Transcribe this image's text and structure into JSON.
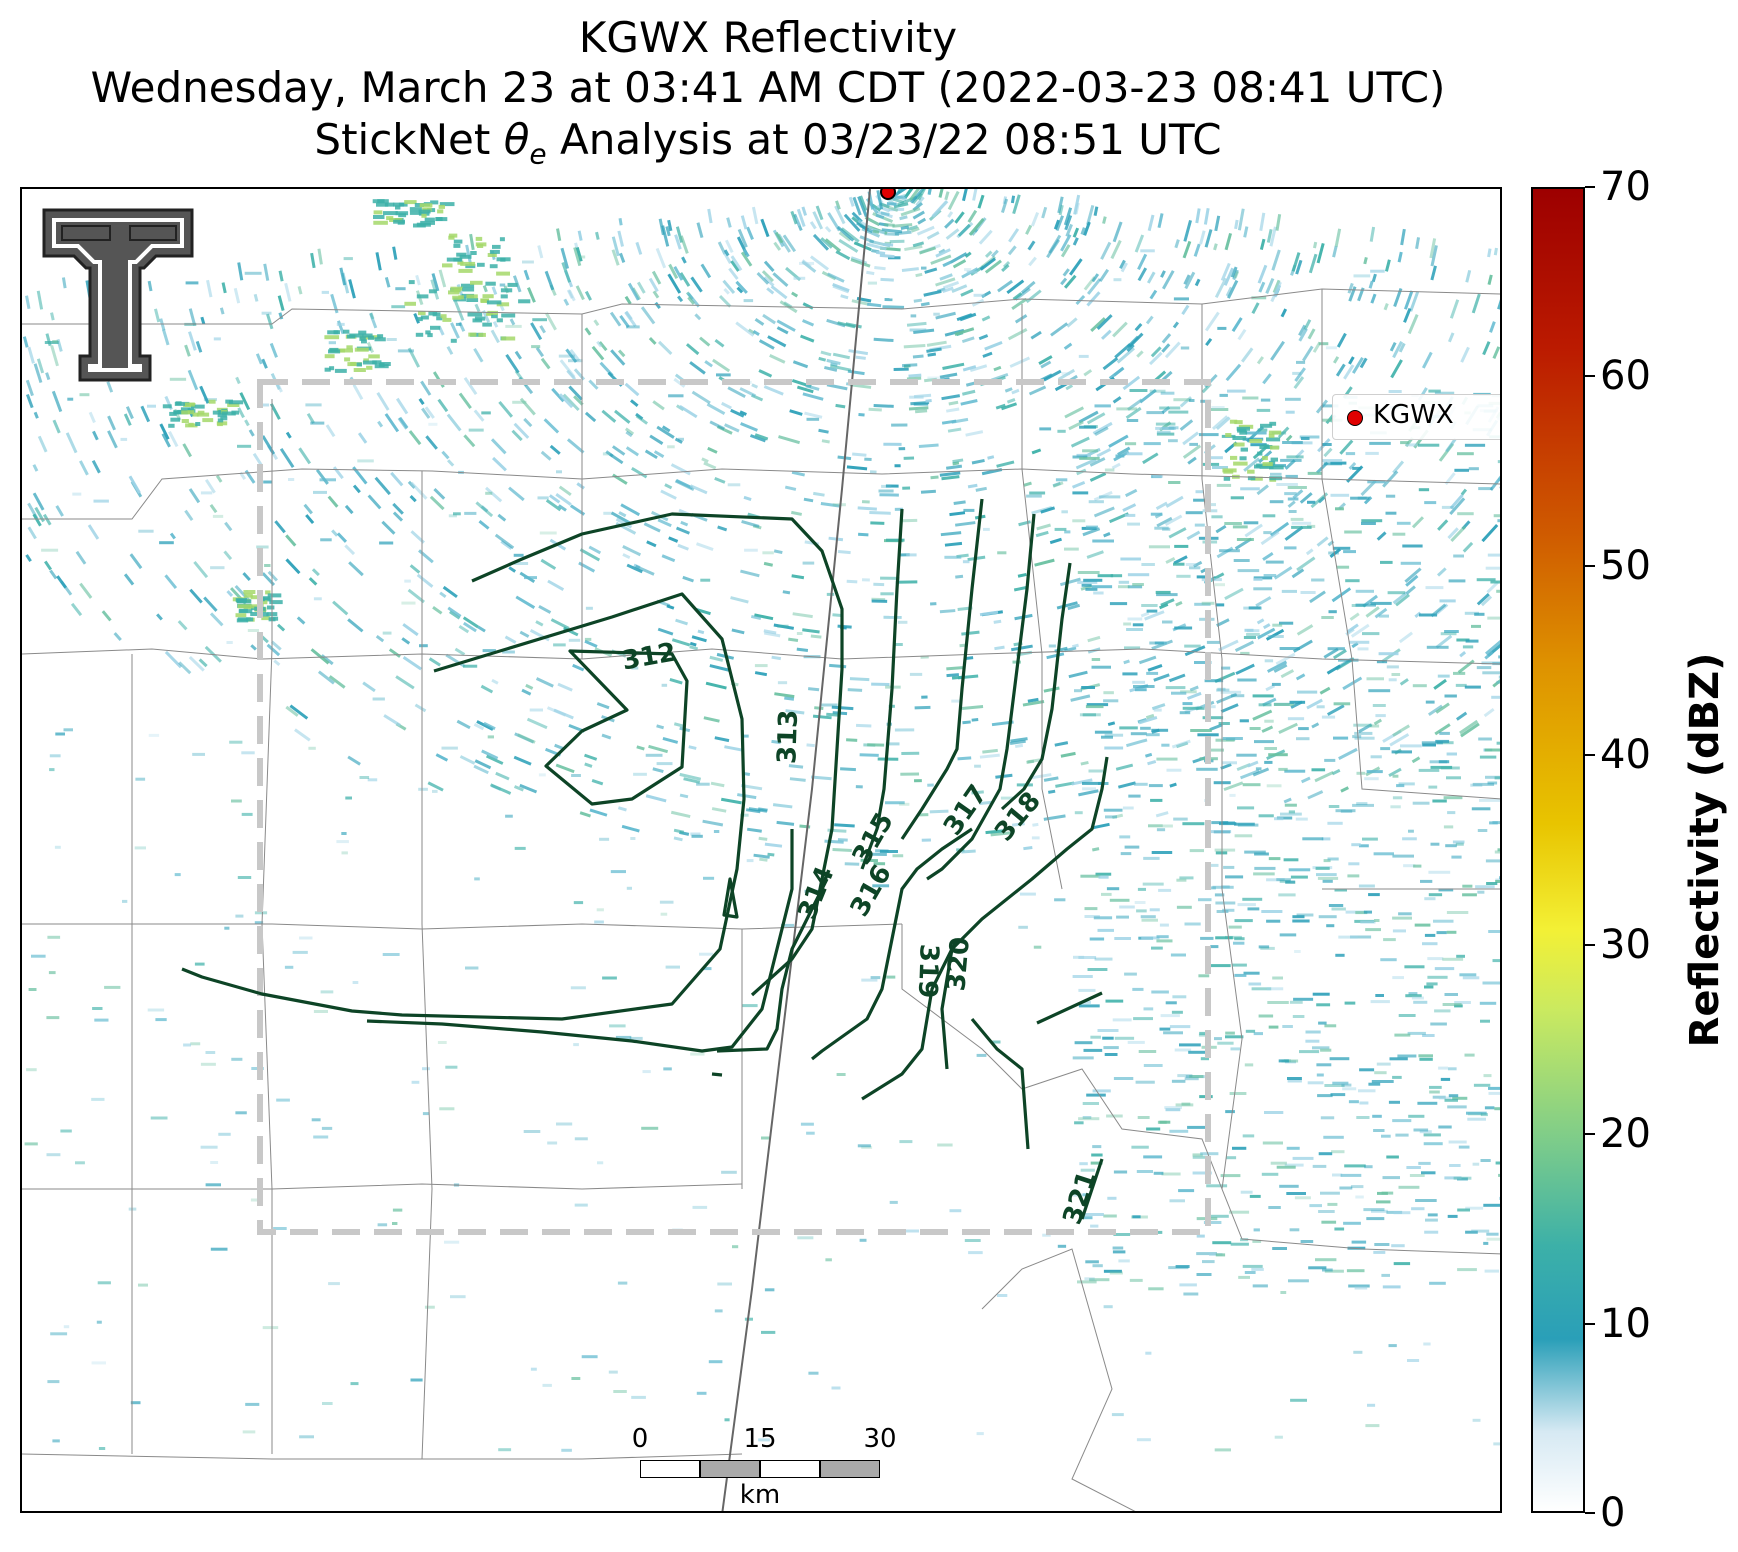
{
  "title": {
    "line1": "KGWX Reflectivity",
    "line2": "Wednesday, March 23 at 03:41 AM CDT (2022-03-23 08:41 UTC)",
    "line3_prefix": "StickNet ",
    "line3_symbol": "θ",
    "line3_sub": "e",
    "line3_suffix": " Analysis at 03/23/22 08:51 UTC"
  },
  "legend": {
    "label": "KGWX",
    "marker_color": "#e00000"
  },
  "colorbar": {
    "title": "Reflectivity (dBZ)",
    "ticks": [
      "0",
      "10",
      "20",
      "30",
      "40",
      "50",
      "60",
      "70"
    ],
    "min": 0,
    "max": 70
  },
  "scalebar": {
    "ticks": [
      "0",
      "15",
      "30"
    ],
    "unit": "km"
  },
  "contours": {
    "color": "#0d4426",
    "labels": [
      "312",
      "313",
      "314",
      "315",
      "316",
      "317",
      "318",
      "319",
      "320",
      "321"
    ]
  },
  "logo": {
    "name": "texas-tech-double-t-logo"
  },
  "colors": {
    "frame": "#000000",
    "domain_box": "#c8c8c8",
    "county_lines": "#8a8a8a",
    "radar_echo": "#2a9fb8"
  }
}
